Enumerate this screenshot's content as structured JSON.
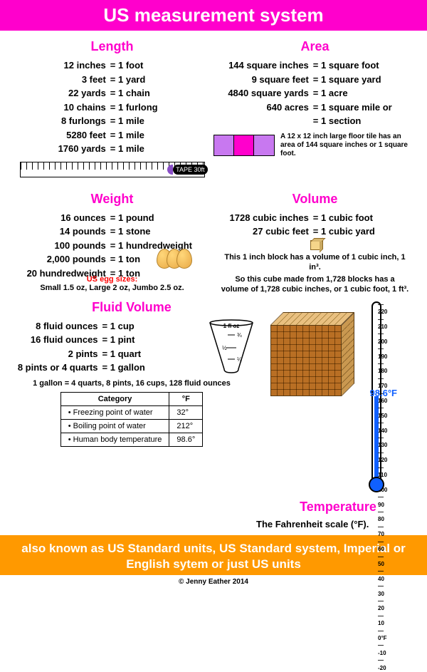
{
  "header": {
    "title": "US measurement system"
  },
  "length": {
    "title": "Length",
    "rows": [
      {
        "l": "12 inches",
        "r": "= 1 foot"
      },
      {
        "l": "3 feet",
        "r": "= 1 yard"
      },
      {
        "l": "22 yards",
        "r": "= 1 chain"
      },
      {
        "l": "10 chains",
        "r": "= 1 furlong"
      },
      {
        "l": "8 furlongs",
        "r": "= 1 mile"
      },
      {
        "l": "5280 feet",
        "r": "= 1 mile"
      },
      {
        "l": "1760 yards",
        "r": "= 1 mile"
      }
    ],
    "tape_label": "TAPE 30ft"
  },
  "area": {
    "title": "Area",
    "rows": [
      {
        "l": "144 square inches",
        "r": "= 1 square foot"
      },
      {
        "l": "9 square feet",
        "r": "= 1 square yard"
      },
      {
        "l": "4840 square yards",
        "r": "= 1 acre"
      },
      {
        "l": "640 acres",
        "r": "= 1 square mile or"
      },
      {
        "l": "",
        "r": "= 1 section"
      }
    ],
    "tile_colors": [
      "#c878f0",
      "#ff00cc",
      "#c878f0"
    ],
    "tile_text": "A 12 x 12 inch large floor tile has an area of 144 square inches or 1 square foot."
  },
  "weight": {
    "title": "Weight",
    "rows": [
      {
        "l": "16 ounces",
        "r": "= 1 pound"
      },
      {
        "l": "14 pounds",
        "r": "= 1 stone"
      },
      {
        "l": "100 pounds",
        "r": "= 1 hundredweight"
      },
      {
        "l": "2,000 pounds",
        "r": "= 1 ton"
      },
      {
        "l": "20 hundredweight",
        "r": "= 1 ton"
      }
    ],
    "egg_title": "US egg sizes:",
    "egg_sizes": "Small 1.5 oz, Large 2 oz, Jumbo 2.5 oz."
  },
  "volume": {
    "title": "Volume",
    "rows": [
      {
        "l": "1728 cubic inches",
        "r": "= 1 cubic foot"
      },
      {
        "l": "27 cubic feet",
        "r": "= 1 cubic yard"
      }
    ],
    "note1": "This 1 inch block has a volume of 1 cubic inch, 1 in³.",
    "note2": "So this cube made from 1,728 blocks has a volume of 1,728 cubic inches, or 1 cubic foot, 1 ft³."
  },
  "fluid": {
    "title": "Fluid Volume",
    "rows": [
      {
        "l": "8 fluid ounces",
        "r": "= 1 cup"
      },
      {
        "l": "16 fluid ounces",
        "r": "= 1 pint"
      },
      {
        "l": "2 pints",
        "r": "= 1 quart"
      },
      {
        "l": "8 pints or 4 quarts",
        "r": "= 1 gallon"
      }
    ],
    "beaker_labels": {
      "top": "1 fl oz",
      "q3": "¾",
      "half": "½",
      "q1": "¼"
    },
    "gallon_note": "1 gallon = 4 quarts, 8 pints, 16 cups, 128 fluid ounces"
  },
  "temperature": {
    "title": "Temperature",
    "subtitle": "The Fahrenheit scale (°F).",
    "body_temp": "98.6°F",
    "scale": [
      "220",
      "210",
      "200",
      "190",
      "180",
      "170",
      "160",
      "150",
      "140",
      "130",
      "120",
      "110",
      "100",
      "90",
      "80",
      "70",
      "60",
      "50",
      "40",
      "30",
      "20",
      "10",
      "0°F",
      "-10",
      "-20"
    ],
    "table": {
      "headers": [
        "Category",
        "°F"
      ],
      "rows": [
        [
          "• Freezing point of water",
          "32°"
        ],
        [
          "• Boiling point of water",
          "212°"
        ],
        [
          "• Human body temperature",
          "98.6°"
        ]
      ]
    }
  },
  "footer": {
    "text": "also known as US Standard units, US Standard system, Imperial or English sytem or just US units"
  },
  "copyright": "© Jenny Eather 2014",
  "colors": {
    "magenta": "#ff00cc",
    "orange": "#ff9900",
    "blue": "#1060ff",
    "tile1": "#c878f0",
    "cube": "#d9a860"
  }
}
